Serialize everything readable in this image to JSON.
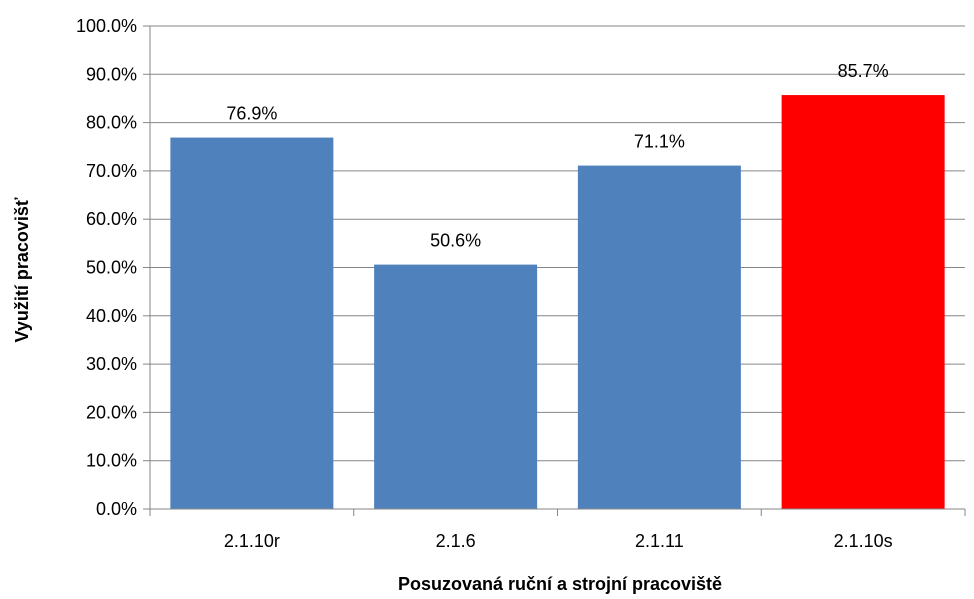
{
  "chart_data": {
    "type": "bar",
    "title": "",
    "xlabel": "Posuzovaná  ruční a strojní pracoviště",
    "ylabel": "Využití pracovišť",
    "categories": [
      "2.1.10r",
      "2.1.6",
      "2.1.11",
      "2.1.10s"
    ],
    "values": [
      76.9,
      50.6,
      71.1,
      85.7
    ],
    "value_labels": [
      "76.9%",
      "50.6%",
      "71.1%",
      "85.7%"
    ],
    "bar_colors": [
      "#4f81bd",
      "#4f81bd",
      "#4f81bd",
      "#ff0000"
    ],
    "ylim": [
      0,
      100
    ],
    "yticks": [
      0,
      10,
      20,
      30,
      40,
      50,
      60,
      70,
      80,
      90,
      100
    ],
    "ytick_labels": [
      "0.0%",
      "10.0%",
      "20.0%",
      "30.0%",
      "40.0%",
      "50.0%",
      "60.0%",
      "70.0%",
      "80.0%",
      "90.0%",
      "100.0%"
    ],
    "grid": true,
    "gridline_color": "#868686",
    "legend": "none"
  }
}
